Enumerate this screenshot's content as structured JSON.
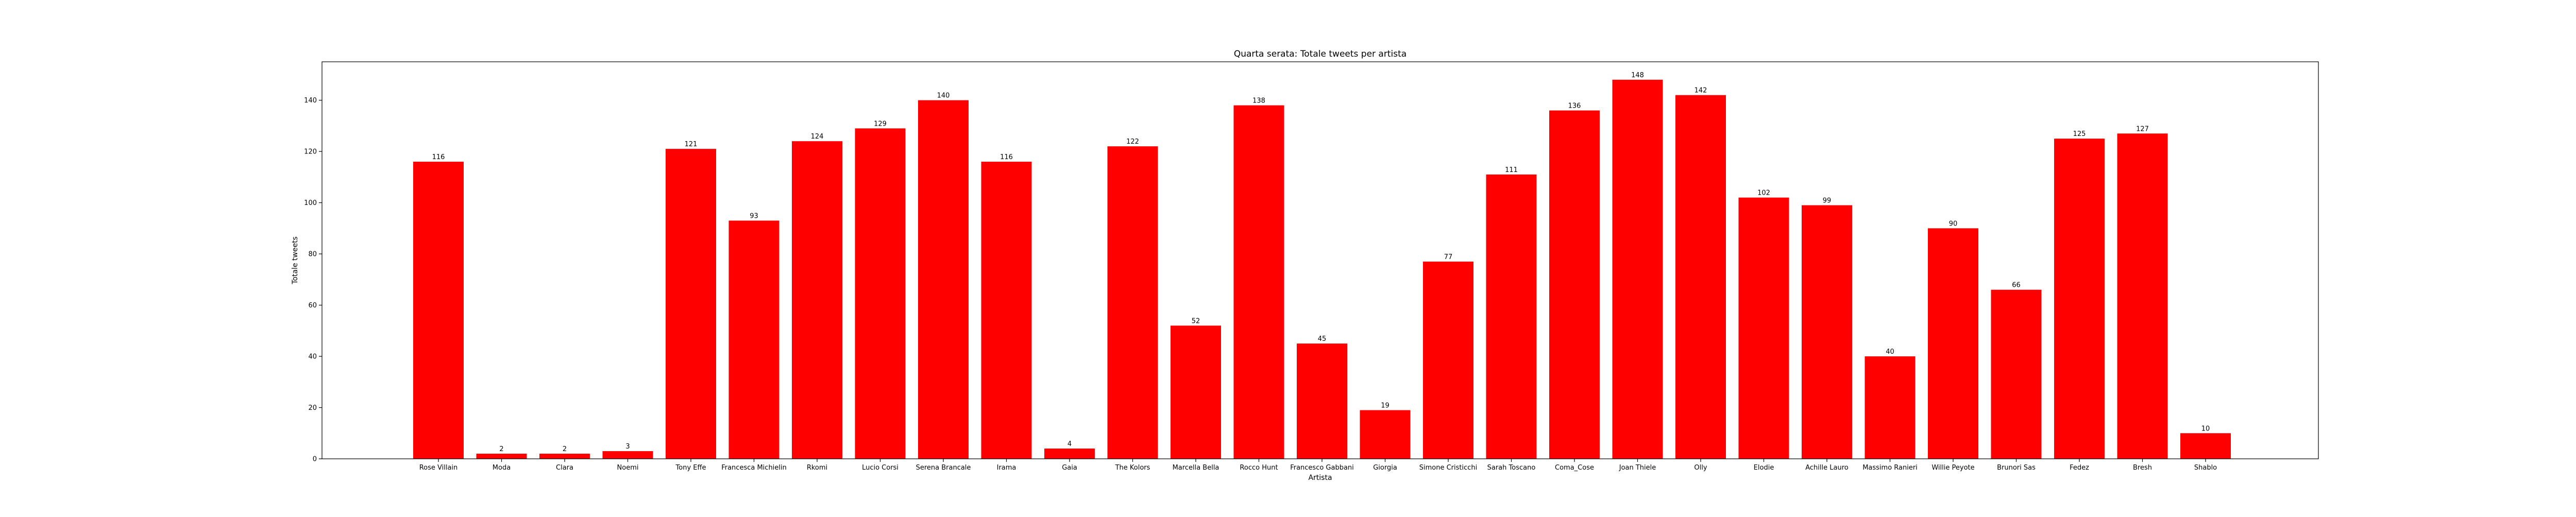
{
  "chart_data": {
    "type": "bar",
    "title": "Quarta serata: Totale tweets per artista",
    "xlabel": "Artista",
    "ylabel": "Totale tweets",
    "categories": [
      "Rose Villain",
      "Moda",
      "Clara",
      "Noemi",
      "Tony Effe",
      "Francesca Michielin",
      "Rkomi",
      "Lucio Corsi",
      "Serena Brancale",
      "Irama",
      "Gaia",
      "The Kolors",
      "Marcella Bella",
      "Rocco Hunt",
      "Francesco Gabbani",
      "Giorgia",
      "Simone Cristicchi",
      "Sarah Toscano",
      "Coma_Cose",
      "Joan Thiele",
      "Olly",
      "Elodie",
      "Achille Lauro",
      "Massimo Ranieri",
      "Willie Peyote",
      "Brunori Sas",
      "Fedez",
      "Bresh",
      "Shablo"
    ],
    "values": [
      116,
      2,
      2,
      3,
      121,
      93,
      124,
      129,
      140,
      116,
      4,
      122,
      52,
      138,
      45,
      19,
      77,
      111,
      136,
      148,
      142,
      102,
      99,
      40,
      90,
      66,
      125,
      127,
      10
    ],
    "data_labels": [
      "116",
      "2",
      "2",
      "3",
      "121",
      "93",
      "124",
      "129",
      "140",
      "116",
      "4",
      "122",
      "52",
      "138",
      "45",
      "19",
      "77",
      "111",
      "136",
      "148",
      "142",
      "102",
      "99",
      "40",
      "90",
      "66",
      "125",
      "127",
      "10"
    ],
    "ylim": [
      0,
      155
    ],
    "yticks": [
      0,
      20,
      40,
      60,
      80,
      100,
      120,
      140
    ],
    "ytick_labels": [
      "0",
      "20",
      "40",
      "60",
      "80",
      "100",
      "120",
      "140"
    ],
    "bar_color": "#ff0000",
    "grid": false,
    "legend": "none"
  }
}
